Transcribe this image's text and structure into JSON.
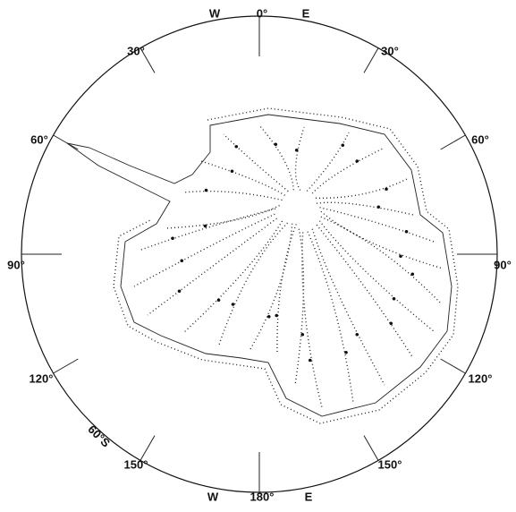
{
  "map": {
    "top_labels": {
      "west": "W",
      "meridian": "0°",
      "east": "E"
    },
    "bottom_labels": {
      "west": "W",
      "meridian": "180°",
      "east": "E"
    },
    "longitude_labels": [
      {
        "left": "30°",
        "right": "30°"
      },
      {
        "left": "60°",
        "right": "60°"
      },
      {
        "left": "90°",
        "right": "90°"
      },
      {
        "left": "120°",
        "right": "120°"
      },
      {
        "left": "150°",
        "right": "150°"
      }
    ],
    "latitude_label": "60°S"
  }
}
